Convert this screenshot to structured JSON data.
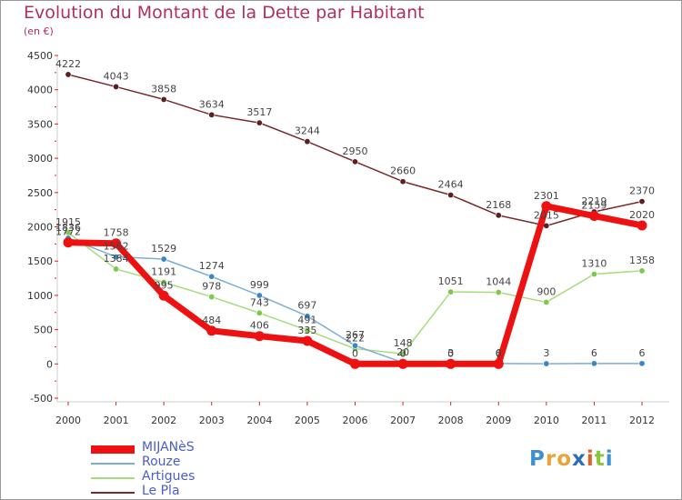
{
  "header": {
    "title": "Evolution du Montant de la Dette par Habitant",
    "unit": "(en €)"
  },
  "logo": {
    "letters": [
      "P",
      "r",
      "o",
      "x",
      "i",
      "t",
      "i"
    ],
    "colors": [
      "#3f8fd1",
      "#e8a33b",
      "#e8a33b",
      "#2c6fb5",
      "#e35f24",
      "#8cc63f",
      "#3f8fd1"
    ]
  },
  "chart_data": {
    "type": "line",
    "x": [
      "2000",
      "2001",
      "2002",
      "2003",
      "2004",
      "2005",
      "2006",
      "2007",
      "2008",
      "2009",
      "2010",
      "2011",
      "2012"
    ],
    "ylim": [
      -500,
      4500
    ],
    "yticks": [
      -500,
      0,
      500,
      1000,
      1500,
      2000,
      2500,
      3000,
      3500,
      4000,
      4500
    ],
    "grid": false,
    "legend_position": "bottom-left",
    "series": [
      {
        "name": "Le Pla",
        "color": "#7a2a2a",
        "values": [
          4222,
          4043,
          3858,
          3634,
          3517,
          3244,
          2950,
          2660,
          2464,
          2168,
          2015,
          2219,
          2370
        ]
      },
      {
        "name": "Artigues",
        "color": "#a6dc7e",
        "values": [
          1915,
          1384,
          1191,
          978,
          743,
          491,
          222,
          148,
          1051,
          1044,
          900,
          1310,
          1358
        ]
      },
      {
        "name": "Rouze",
        "color": "#7aaed6",
        "values": [
          1836,
          1562,
          1529,
          1274,
          999,
          697,
          267,
          20,
          3,
          6,
          3,
          6,
          6
        ]
      },
      {
        "name": "MIJANèS",
        "color": "#ee1111",
        "values": [
          1772,
          1758,
          995,
          484,
          406,
          335,
          0,
          0,
          0,
          0,
          2301,
          2159,
          2020
        ]
      }
    ]
  }
}
